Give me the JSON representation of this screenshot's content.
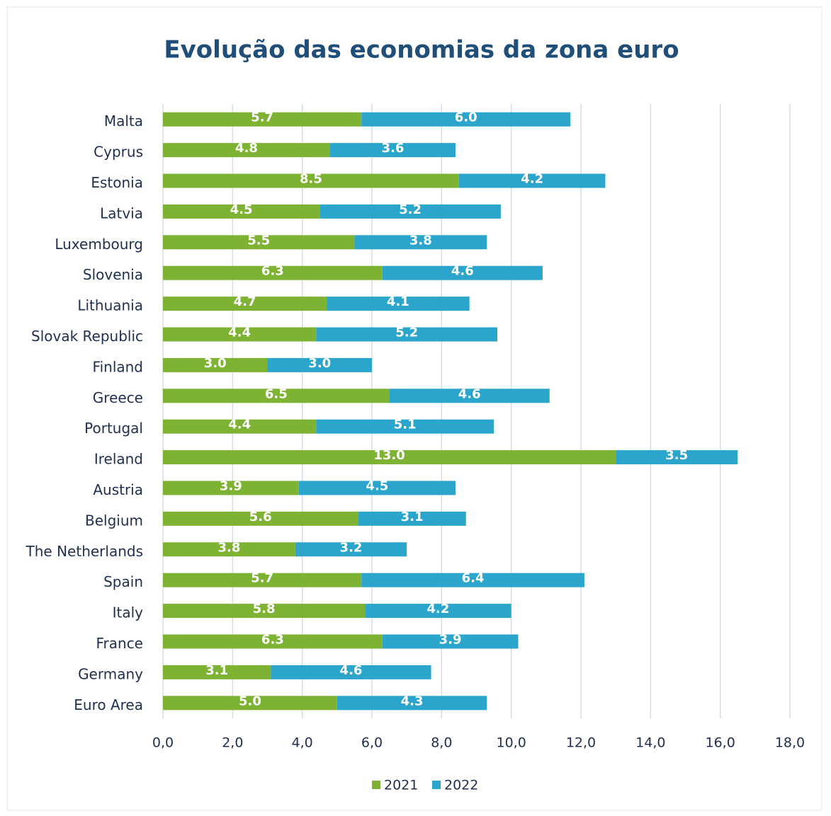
{
  "chart_data": {
    "type": "stacked-bar-horizontal",
    "title": "Evolução das economias da zona euro",
    "categories": [
      "Malta",
      "Cyprus",
      "Estonia",
      "Latvia",
      "Luxembourg",
      "Slovenia",
      "Lithuania",
      "Slovak Republic",
      "Finland",
      "Greece",
      "Portugal",
      "Ireland",
      "Austria",
      "Belgium",
      "The Netherlands",
      "Spain",
      "Italy",
      "France",
      "Germany",
      "Euro Area"
    ],
    "series": [
      {
        "name": "2021",
        "color": "#7db233",
        "values": [
          5.7,
          4.8,
          8.5,
          4.5,
          5.5,
          6.3,
          4.7,
          4.4,
          3.0,
          6.5,
          4.4,
          13.0,
          3.9,
          5.6,
          3.8,
          5.7,
          5.8,
          6.3,
          3.1,
          5.0
        ],
        "value_labels": [
          "5.7",
          "4.8",
          "8.5",
          "4.5",
          "5.5",
          "6.3",
          "4.7",
          "4.4",
          "3.0",
          "6.5",
          "4.4",
          "13.0",
          "3.9",
          "5.6",
          "3.8",
          "5.7",
          "5.8",
          "6.3",
          "3.1",
          "5.0"
        ]
      },
      {
        "name": "2022",
        "color": "#2ba5cc",
        "values": [
          6.0,
          3.6,
          4.2,
          5.2,
          3.8,
          4.6,
          4.1,
          5.2,
          3.0,
          4.6,
          5.1,
          3.5,
          4.5,
          3.1,
          3.2,
          6.4,
          4.2,
          3.9,
          4.6,
          4.3
        ],
        "value_labels": [
          "6.0",
          "3.6",
          "4.2",
          "5.2",
          "3.8",
          "4.6",
          "4.1",
          "5.2",
          "3.0",
          "4.6",
          "5.1",
          "3.5",
          "4.5",
          "3.1",
          "3.2",
          "6.4",
          "4.2",
          "3.9",
          "4.6",
          "4.3"
        ]
      }
    ],
    "xlim": [
      0,
      18
    ],
    "xticks": [
      {
        "value": 0,
        "label": "0,0"
      },
      {
        "value": 2,
        "label": "2,0"
      },
      {
        "value": 4,
        "label": "4,0"
      },
      {
        "value": 6,
        "label": "6,0"
      },
      {
        "value": 8,
        "label": "8,0"
      },
      {
        "value": 10,
        "label": "10,0"
      },
      {
        "value": 12,
        "label": "12,0"
      },
      {
        "value": 14,
        "label": "14,0"
      },
      {
        "value": 16,
        "label": "16,0"
      },
      {
        "value": 18,
        "label": "18,0"
      }
    ],
    "grid": true,
    "legend": "bottom"
  }
}
